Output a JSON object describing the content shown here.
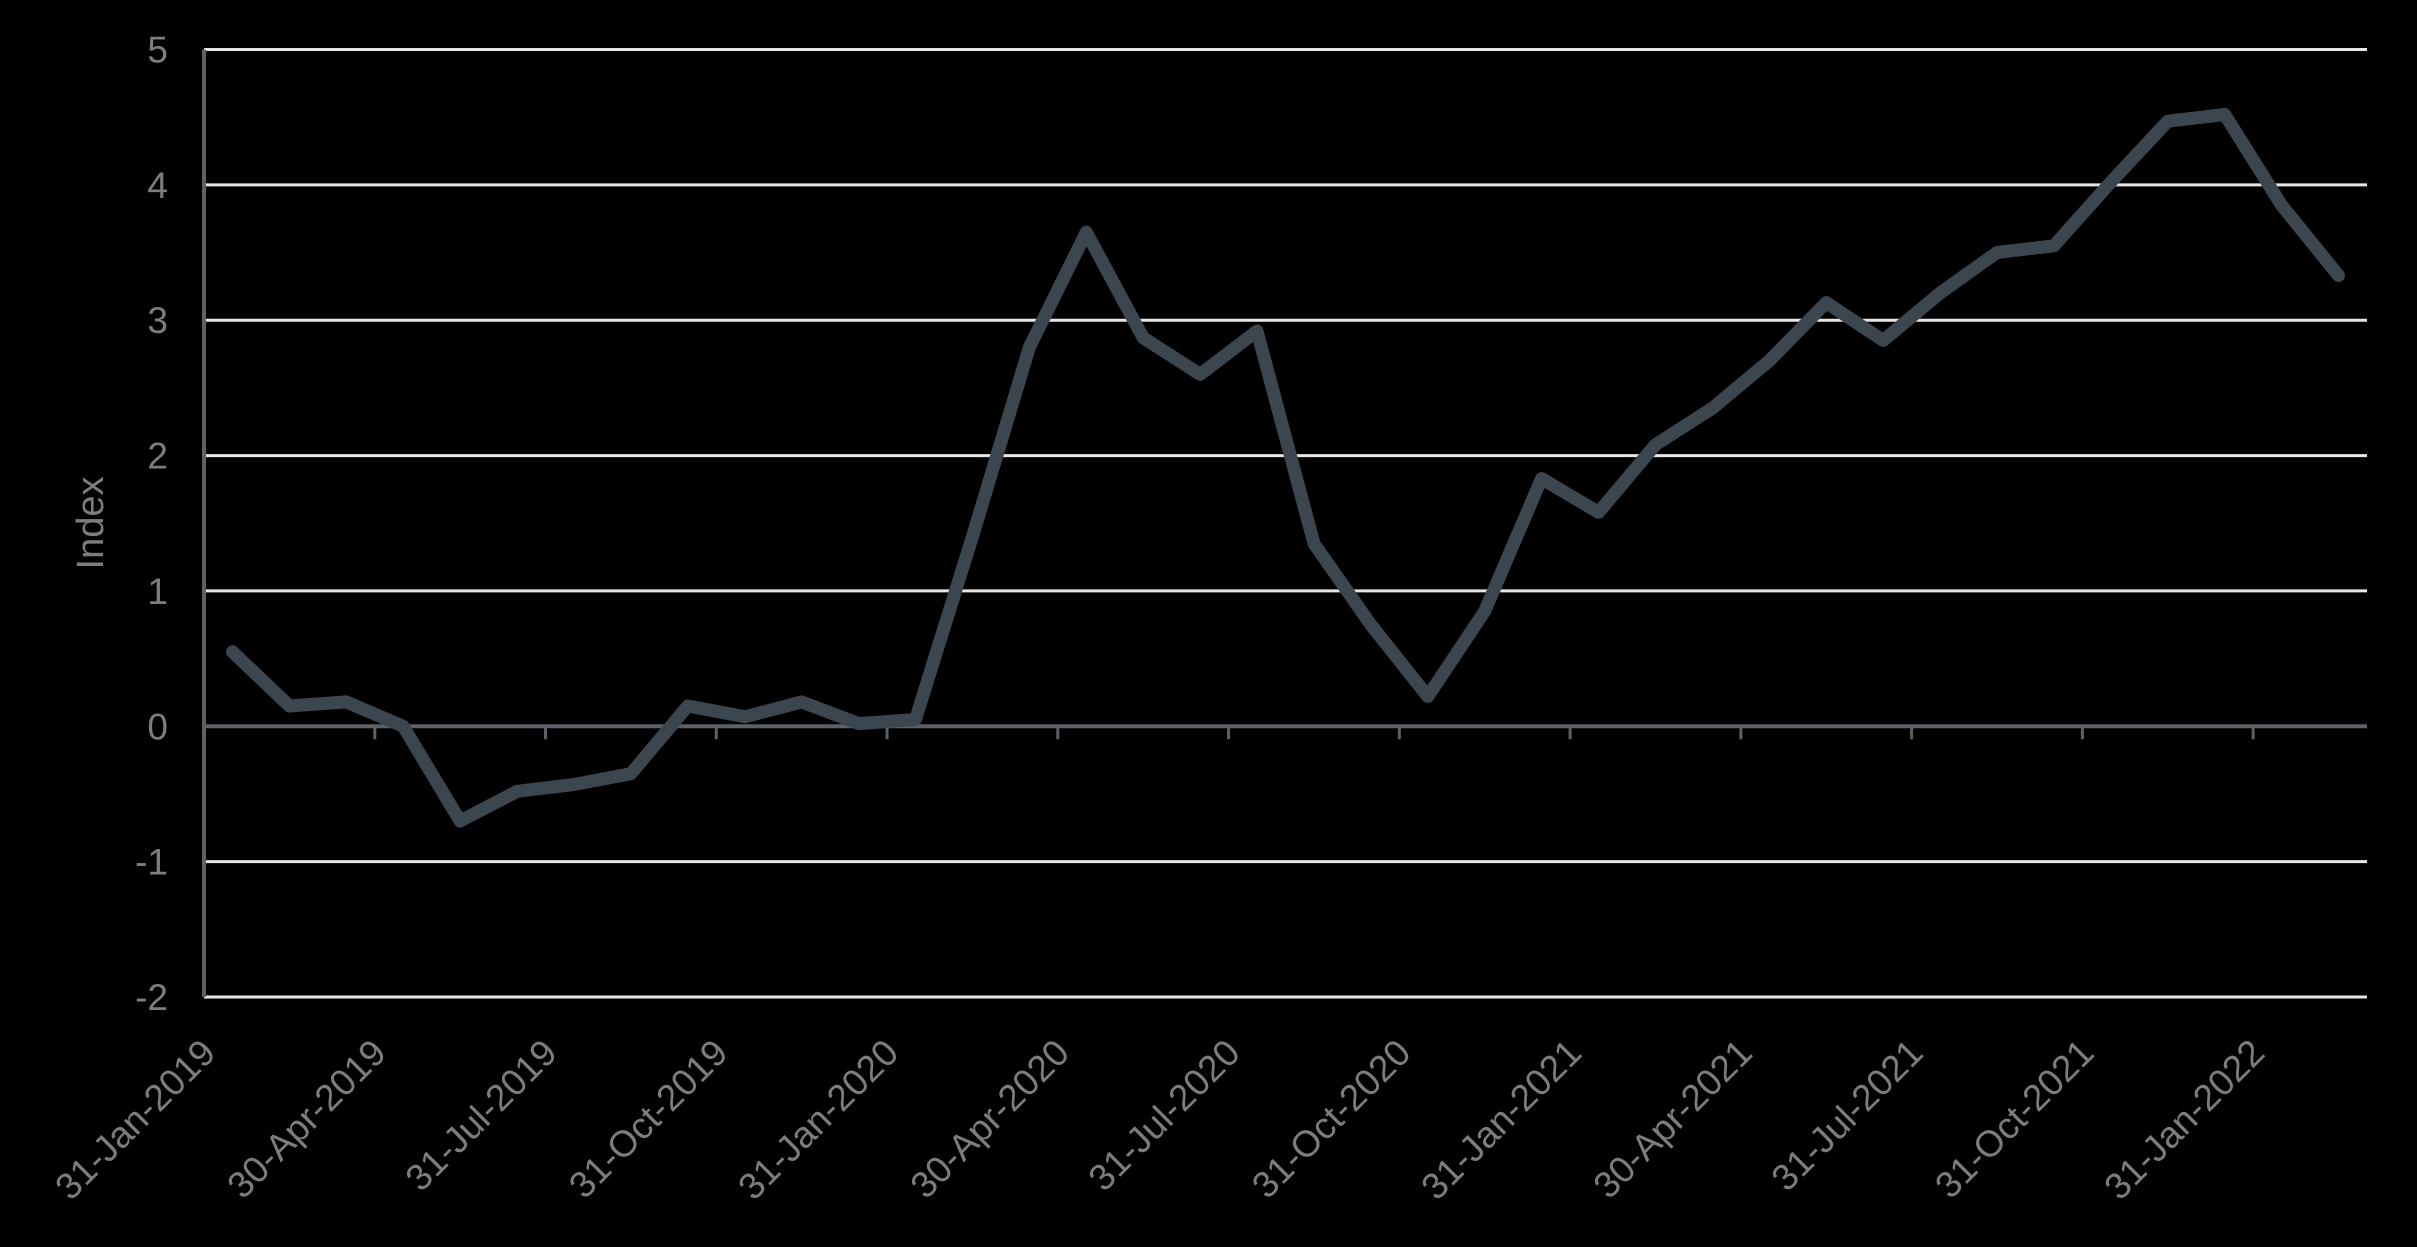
{
  "chart_data": {
    "type": "line",
    "title": "",
    "xlabel": "",
    "ylabel": "Index",
    "legend_position": "none",
    "grid": true,
    "ylim": [
      -2,
      5
    ],
    "y_ticks": [
      5,
      4,
      3,
      2,
      1,
      0,
      -1,
      -2
    ],
    "x": [
      "31-Jan-2019",
      "28-Feb-2019",
      "31-Mar-2019",
      "30-Apr-2019",
      "31-May-2019",
      "30-Jun-2019",
      "31-Jul-2019",
      "31-Aug-2019",
      "30-Sep-2019",
      "31-Oct-2019",
      "30-Nov-2019",
      "31-Dec-2019",
      "31-Jan-2020",
      "29-Feb-2020",
      "31-Mar-2020",
      "30-Apr-2020",
      "31-May-2020",
      "30-Jun-2020",
      "31-Jul-2020",
      "31-Aug-2020",
      "30-Sep-2020",
      "31-Oct-2020",
      "30-Nov-2020",
      "31-Dec-2020",
      "31-Jan-2021",
      "28-Feb-2021",
      "31-Mar-2021",
      "30-Apr-2021",
      "31-May-2021",
      "30-Jun-2021",
      "31-Jul-2021",
      "31-Aug-2021",
      "30-Sep-2021",
      "31-Oct-2021",
      "30-Nov-2021",
      "31-Dec-2021",
      "31-Jan-2022",
      "28-Feb-2022"
    ],
    "series": [
      {
        "name": "Index",
        "values": [
          0.55,
          0.15,
          0.18,
          0.0,
          -0.7,
          -0.48,
          -0.43,
          -0.35,
          0.15,
          0.07,
          0.18,
          0.02,
          0.05,
          1.4,
          2.8,
          3.65,
          2.87,
          2.6,
          2.92,
          1.35,
          0.75,
          0.22,
          0.85,
          1.83,
          1.58,
          2.08,
          2.35,
          2.7,
          3.13,
          2.85,
          3.2,
          3.5,
          3.55,
          4.02,
          4.47,
          4.52,
          3.85,
          3.33
        ]
      }
    ],
    "x_tick_labels": [
      "31-Jan-2019",
      "30-Apr-2019",
      "31-Jul-2019",
      "31-Oct-2019",
      "31-Jan-2020",
      "30-Apr-2020",
      "31-Jul-2020",
      "31-Oct-2020",
      "31-Jan-2021",
      "30-Apr-2021",
      "31-Jul-2021",
      "31-Oct-2021",
      "31-Jan-2022"
    ],
    "x_tick_interval": 3,
    "x_label_rotation_deg": -45,
    "colors": {
      "background": "#000000",
      "series_line": "#3b464e",
      "axis_line": "#5a6167",
      "gridline": "#e6e6e6",
      "tick_label": "#7d7d7d"
    }
  }
}
